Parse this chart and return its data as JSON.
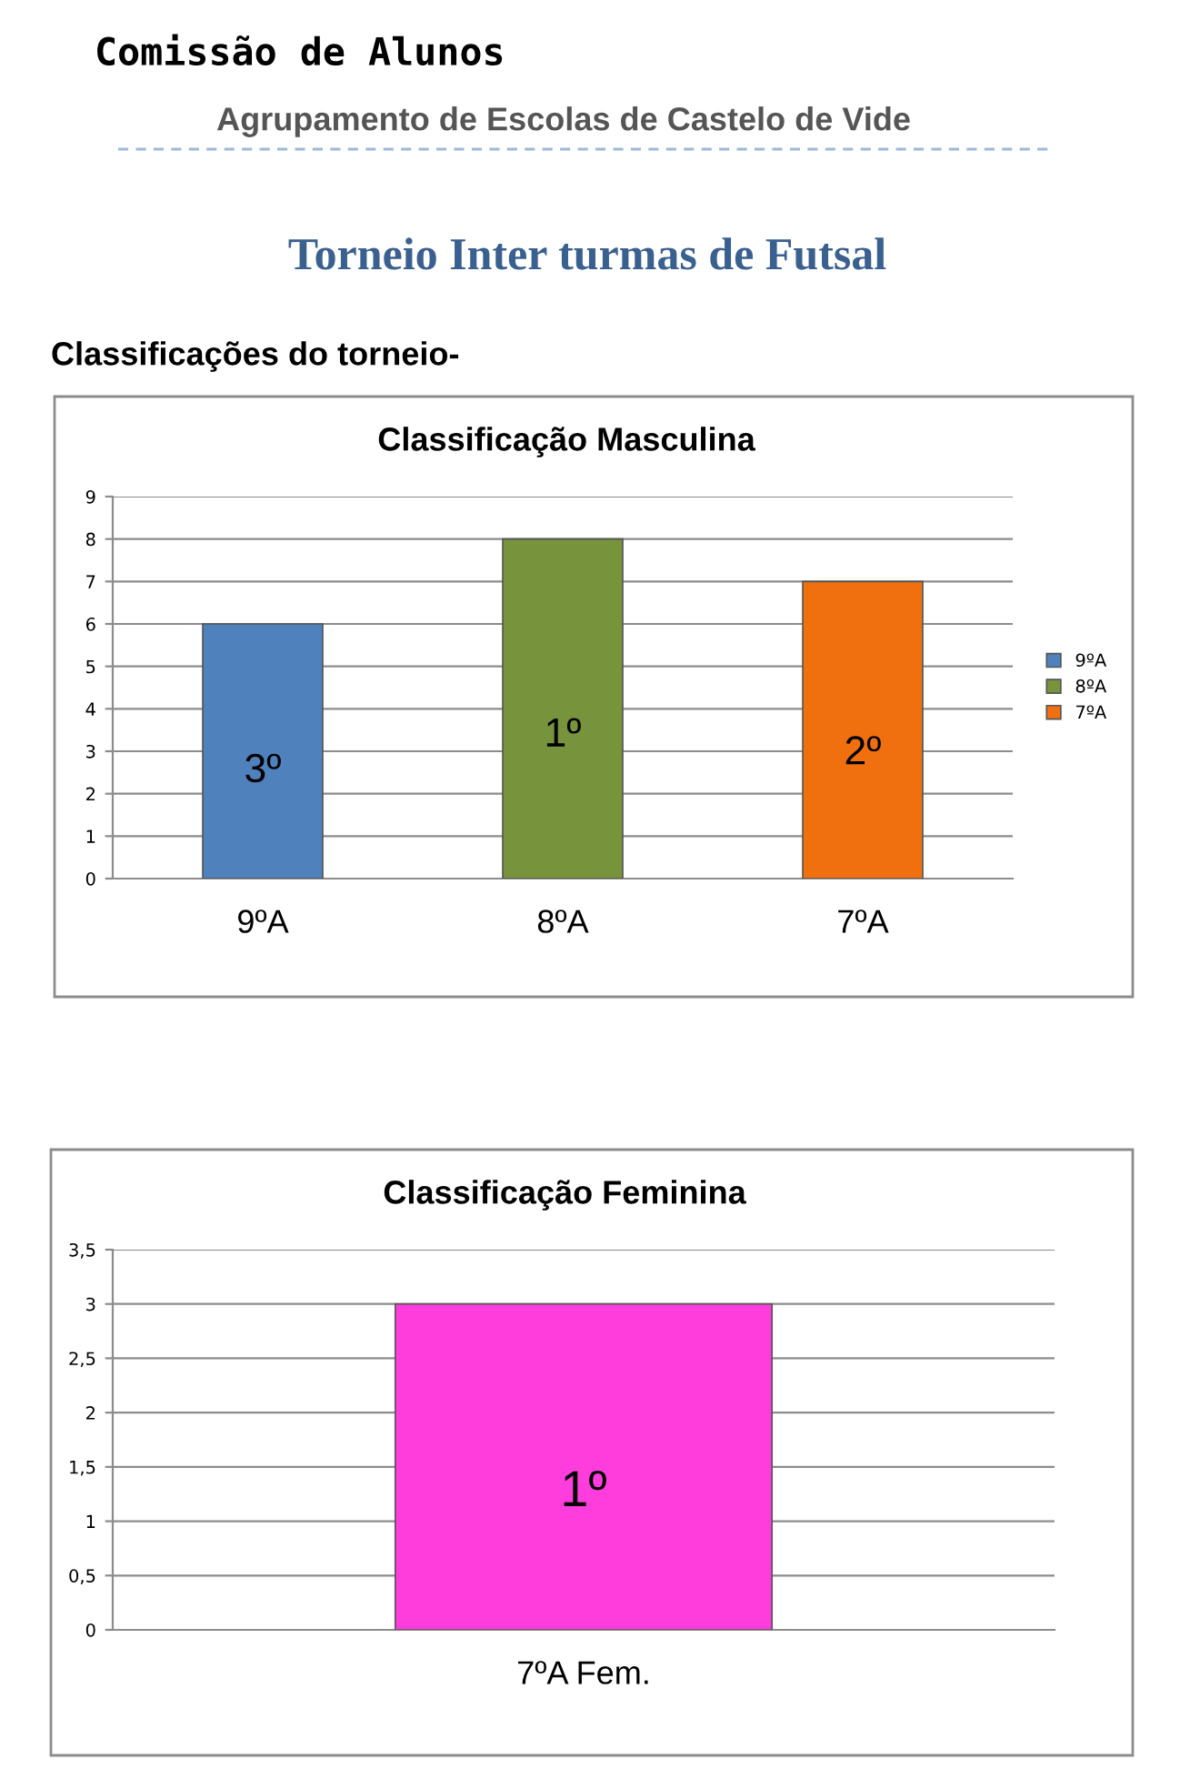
{
  "chart_data": [
    {
      "type": "other",
      "title": "Torneio Inter turmas de Futsal",
      "annotations": [
        "Comissão de Alunos",
        "Agrupamento de Escolas de Castelo de Vide",
        "Classificações do torneio-"
      ]
    },
    {
      "type": "bar",
      "title": "Classificação Masculina",
      "categories": [
        "9ºA",
        "8ºA",
        "7ºA"
      ],
      "series": [
        {
          "name": "9ºA",
          "color": "#4f81bd",
          "values": [
            6,
            null,
            null
          ]
        },
        {
          "name": "8ºA",
          "color": "#77933c",
          "values": [
            null,
            8,
            null
          ]
        },
        {
          "name": "7ºA",
          "color": "#f07010",
          "values": [
            null,
            null,
            7
          ]
        }
      ],
      "annotations": [
        "3º",
        "1º",
        "2º"
      ],
      "ylim": [
        0,
        9
      ],
      "yticks": [
        0,
        1,
        2,
        3,
        4,
        5,
        6,
        7,
        8,
        9
      ],
      "grid": "y",
      "legend": "right"
    },
    {
      "type": "bar",
      "title": "Classificação Feminina",
      "categories": [
        "7ºA Fem."
      ],
      "values": [
        3
      ],
      "color": "#ff3ddc",
      "annotations": [
        "1º"
      ],
      "ylim": [
        0,
        3.5
      ],
      "yticks": [
        0,
        {
          "value": 0.5,
          "label": "0,5"
        },
        1,
        {
          "value": 1.5,
          "label": "1,5"
        },
        2,
        {
          "value": 2.5,
          "label": "2,5"
        },
        3,
        {
          "value": 3.5,
          "label": "3,5"
        }
      ],
      "grid": "y"
    }
  ]
}
